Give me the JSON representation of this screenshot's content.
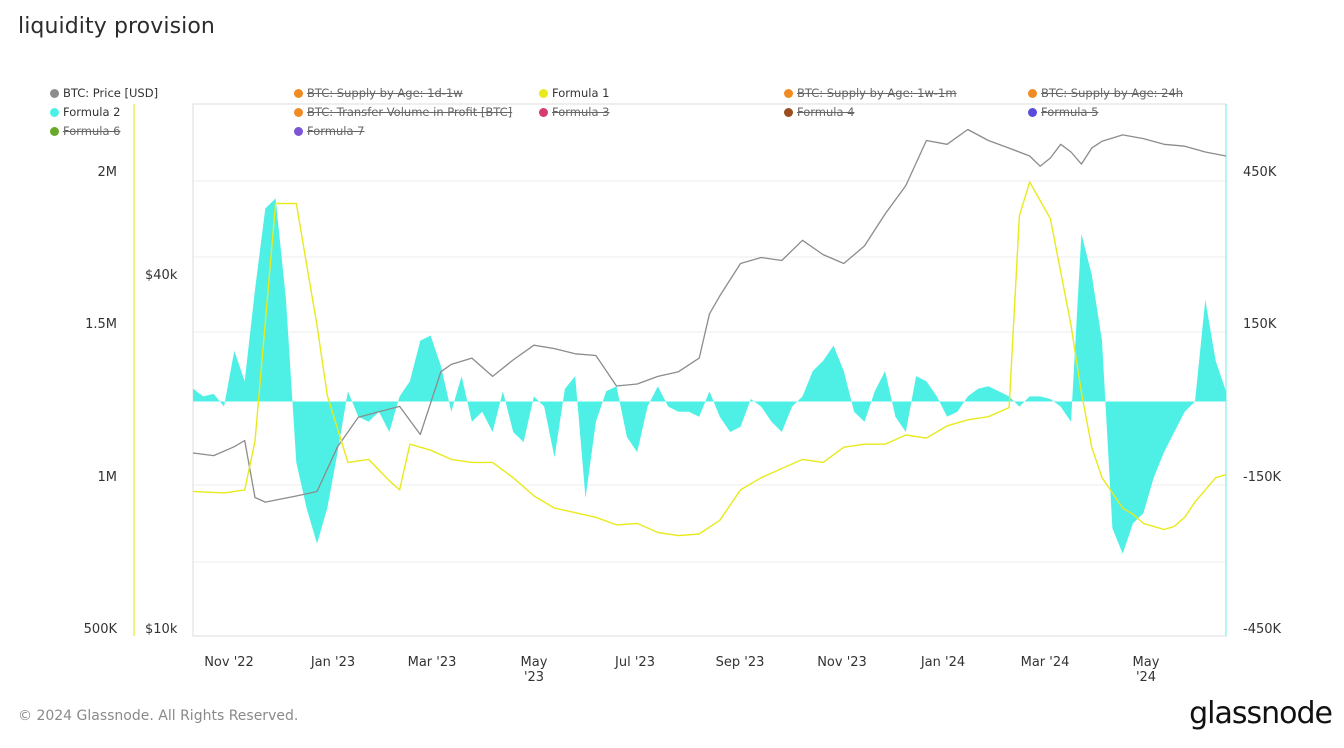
{
  "page": {
    "title": "liquidity provision",
    "footer": "© 2024 Glassnode. All Rights Reserved.",
    "brand": "glassnode"
  },
  "legend": [
    {
      "label": "BTC: Price [USD]",
      "color": "#8c8c8c",
      "enabled": true
    },
    {
      "label": "BTC: Supply by Age: 1d-1w",
      "color": "#f08a24",
      "enabled": false
    },
    {
      "label": "Formula 1",
      "color": "#e8ea1c",
      "enabled": true
    },
    {
      "label": "BTC: Supply by Age: 1w-1m",
      "color": "#f08a24",
      "enabled": false
    },
    {
      "label": "BTC: Supply by Age: 24h",
      "color": "#f08a24",
      "enabled": false
    },
    {
      "label": "Formula 2",
      "color": "#4ef0e6",
      "enabled": true
    },
    {
      "label": "BTC: Transfer Volume in Profit [BTC]",
      "color": "#f08a24",
      "enabled": false
    },
    {
      "label": "Formula 3",
      "color": "#d63b6e",
      "enabled": false
    },
    {
      "label": "Formula 4",
      "color": "#9a4e1f",
      "enabled": false
    },
    {
      "label": "Formula 5",
      "color": "#5b4bdb",
      "enabled": false
    },
    {
      "label": "Formula 6",
      "color": "#6aaa2a",
      "enabled": false
    },
    {
      "label": "Formula 7",
      "color": "#7a55d4",
      "enabled": false
    }
  ],
  "chart_data": {
    "type": "line",
    "title": "liquidity provision",
    "x_ticks": [
      "Nov '22",
      "Jan '23",
      "Mar '23",
      "May '23",
      "Jul '23",
      "Sep '23",
      "Nov '23",
      "Jan '24",
      "Mar '24",
      "May '24"
    ],
    "x_range": [
      "2022-10-01",
      "2024-06-20"
    ],
    "axes": {
      "left_formula1": {
        "ticks": [
          "500K",
          "1M",
          "1.5M",
          "2M"
        ],
        "range": [
          500000,
          2000000
        ],
        "color": "#e8ea1c"
      },
      "left_price": {
        "ticks": [
          "$10k",
          "$40k"
        ],
        "scale": "log",
        "range": [
          10000,
          40000
        ]
      },
      "right_formula2": {
        "ticks": [
          "-450K",
          "-150K",
          "150K",
          "450K"
        ],
        "range": [
          -450000,
          450000
        ],
        "color": "#4ef0e6"
      }
    },
    "grid": true,
    "legend_position": "top",
    "series": [
      {
        "name": "BTC: Price [USD]",
        "axis": "left_price",
        "color": "#8c8c8c",
        "type": "line",
        "x": [
          0,
          0.02,
          0.04,
          0.05,
          0.06,
          0.07,
          0.1,
          0.12,
          0.14,
          0.16,
          0.18,
          0.2,
          0.22,
          0.24,
          0.25,
          0.27,
          0.29,
          0.31,
          0.33,
          0.35,
          0.37,
          0.39,
          0.41,
          0.43,
          0.45,
          0.47,
          0.49,
          0.5,
          0.51,
          0.53,
          0.55,
          0.57,
          0.59,
          0.61,
          0.63,
          0.65,
          0.67,
          0.69,
          0.71,
          0.73,
          0.75,
          0.77,
          0.79,
          0.81,
          0.82,
          0.83,
          0.84,
          0.85,
          0.86,
          0.87,
          0.88,
          0.9,
          0.92,
          0.94,
          0.96,
          0.98,
          1.0
        ],
        "y": [
          20000,
          19800,
          20500,
          21000,
          16800,
          16500,
          16900,
          17200,
          20500,
          23000,
          23500,
          24000,
          21500,
          27500,
          28300,
          29000,
          27000,
          28800,
          30500,
          30100,
          29500,
          29300,
          26000,
          26200,
          27000,
          27500,
          29000,
          34500,
          37000,
          42000,
          43000,
          42500,
          46000,
          43500,
          42000,
          45000,
          51000,
          57000,
          68000,
          67000,
          71000,
          68000,
          66000,
          64000,
          61500,
          63500,
          67000,
          65000,
          62000,
          66000,
          67800,
          69500,
          68500,
          67000,
          66500,
          65000,
          64000
        ]
      },
      {
        "name": "Formula 1",
        "axis": "left_formula1",
        "color": "#e8ea1c",
        "type": "line",
        "x": [
          0,
          0.03,
          0.05,
          0.06,
          0.08,
          0.1,
          0.11,
          0.12,
          0.13,
          0.15,
          0.17,
          0.19,
          0.2,
          0.21,
          0.23,
          0.25,
          0.27,
          0.29,
          0.31,
          0.33,
          0.35,
          0.37,
          0.39,
          0.41,
          0.43,
          0.45,
          0.47,
          0.49,
          0.51,
          0.53,
          0.55,
          0.57,
          0.59,
          0.61,
          0.63,
          0.65,
          0.67,
          0.69,
          0.71,
          0.73,
          0.75,
          0.77,
          0.79,
          0.8,
          0.81,
          0.83,
          0.85,
          0.86,
          0.87,
          0.88,
          0.89,
          0.9,
          0.91,
          0.92,
          0.93,
          0.94,
          0.95,
          0.96,
          0.97,
          0.98,
          0.99,
          1.0
        ],
        "y": [
          955000,
          950000,
          960000,
          1120000,
          1900000,
          1900000,
          1700000,
          1500000,
          1270000,
          1050000,
          1060000,
          990000,
          960000,
          1110000,
          1090000,
          1060000,
          1050000,
          1050000,
          1000000,
          940000,
          900000,
          885000,
          870000,
          845000,
          850000,
          820000,
          810000,
          815000,
          860000,
          960000,
          1000000,
          1030000,
          1060000,
          1050000,
          1100000,
          1110000,
          1110000,
          1140000,
          1130000,
          1170000,
          1190000,
          1200000,
          1230000,
          1860000,
          1970000,
          1850000,
          1500000,
          1280000,
          1100000,
          1000000,
          950000,
          900000,
          880000,
          850000,
          840000,
          830000,
          840000,
          870000,
          920000,
          960000,
          1000000,
          1010000
        ]
      },
      {
        "name": "Formula 2",
        "axis": "right_formula2",
        "color": "#4ef0e6",
        "type": "area",
        "x": [
          0,
          0.01,
          0.02,
          0.03,
          0.04,
          0.05,
          0.06,
          0.07,
          0.08,
          0.09,
          0.1,
          0.11,
          0.12,
          0.13,
          0.14,
          0.15,
          0.16,
          0.17,
          0.18,
          0.19,
          0.2,
          0.21,
          0.22,
          0.23,
          0.24,
          0.25,
          0.26,
          0.27,
          0.28,
          0.29,
          0.3,
          0.31,
          0.32,
          0.33,
          0.34,
          0.35,
          0.36,
          0.37,
          0.38,
          0.39,
          0.4,
          0.41,
          0.42,
          0.43,
          0.44,
          0.45,
          0.46,
          0.47,
          0.48,
          0.49,
          0.5,
          0.51,
          0.52,
          0.53,
          0.54,
          0.55,
          0.56,
          0.57,
          0.58,
          0.59,
          0.6,
          0.61,
          0.62,
          0.63,
          0.64,
          0.65,
          0.66,
          0.67,
          0.68,
          0.69,
          0.7,
          0.71,
          0.72,
          0.73,
          0.74,
          0.75,
          0.76,
          0.77,
          0.78,
          0.79,
          0.8,
          0.81,
          0.82,
          0.83,
          0.84,
          0.85,
          0.86,
          0.87,
          0.88,
          0.89,
          0.9,
          0.91,
          0.92,
          0.93,
          0.94,
          0.95,
          0.96,
          0.97,
          0.98,
          0.99,
          1.0
        ],
        "y": [
          25000,
          10000,
          15000,
          -10000,
          100000,
          40000,
          220000,
          380000,
          400000,
          200000,
          -120000,
          -210000,
          -280000,
          -210000,
          -100000,
          20000,
          -30000,
          -40000,
          -20000,
          -60000,
          10000,
          40000,
          120000,
          130000,
          70000,
          -20000,
          50000,
          -40000,
          -20000,
          -60000,
          20000,
          -60000,
          -80000,
          10000,
          -10000,
          -110000,
          25000,
          50000,
          -190000,
          -40000,
          20000,
          30000,
          -70000,
          -100000,
          -10000,
          30000,
          -10000,
          -20000,
          -20000,
          -30000,
          20000,
          -30000,
          -60000,
          -50000,
          5000,
          -10000,
          -40000,
          -60000,
          -10000,
          10000,
          60000,
          80000,
          110000,
          60000,
          -20000,
          -40000,
          20000,
          60000,
          -30000,
          -60000,
          50000,
          40000,
          10000,
          -30000,
          -20000,
          10000,
          25000,
          30000,
          20000,
          10000,
          -10000,
          10000,
          10000,
          5000,
          -10000,
          -40000,
          330000,
          250000,
          120000,
          -250000,
          -300000,
          -240000,
          -220000,
          -150000,
          -100000,
          -60000,
          -20000,
          0,
          200000,
          80000,
          20000
        ]
      }
    ]
  }
}
